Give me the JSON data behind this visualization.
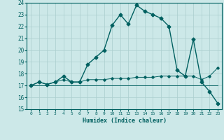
{
  "title": "",
  "xlabel": "Humidex (Indice chaleur)",
  "x": [
    0,
    1,
    2,
    3,
    4,
    5,
    6,
    7,
    8,
    9,
    10,
    11,
    12,
    13,
    14,
    15,
    16,
    17,
    18,
    19,
    20,
    21,
    22,
    23
  ],
  "humidex_main": [
    17.0,
    17.3,
    17.1,
    17.3,
    17.8,
    17.3,
    17.3,
    18.8,
    19.4,
    20.0,
    22.1,
    23.0,
    22.2,
    23.8,
    23.3,
    23.0,
    22.7,
    22.0,
    18.3,
    17.8,
    20.9,
    17.3,
    16.5,
    15.5
  ],
  "humidex_low": [
    17.0,
    17.0,
    17.0,
    17.0,
    17.0,
    17.0,
    17.0,
    17.0,
    17.0,
    17.0,
    17.0,
    17.0,
    17.0,
    17.0,
    17.0,
    17.0,
    17.0,
    17.0,
    17.0,
    17.0,
    17.0,
    17.0,
    17.0,
    17.0
  ],
  "humidex_mid": [
    17.0,
    17.3,
    17.1,
    17.3,
    17.5,
    17.3,
    17.3,
    17.5,
    17.5,
    17.5,
    17.6,
    17.6,
    17.6,
    17.7,
    17.7,
    17.7,
    17.8,
    17.8,
    17.8,
    17.8,
    17.8,
    17.5,
    17.8,
    18.5
  ],
  "ylim": [
    15,
    24
  ],
  "yticks": [
    15,
    16,
    17,
    18,
    19,
    20,
    21,
    22,
    23,
    24
  ],
  "xticks": [
    0,
    1,
    2,
    3,
    4,
    5,
    6,
    7,
    8,
    9,
    10,
    11,
    12,
    13,
    14,
    15,
    16,
    17,
    18,
    19,
    20,
    21,
    22,
    23
  ],
  "line_color": "#006060",
  "bg_color": "#cce8e8",
  "grid_color": "#aacece"
}
